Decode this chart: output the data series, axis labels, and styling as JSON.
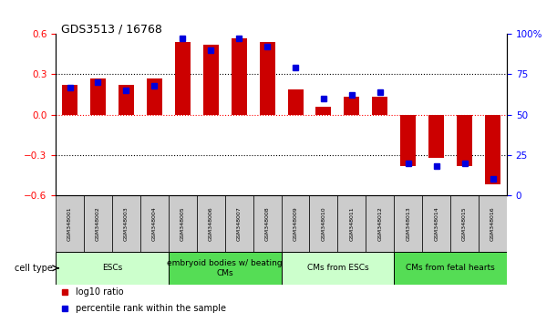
{
  "title": "GDS3513 / 16768",
  "samples": [
    "GSM348001",
    "GSM348002",
    "GSM348003",
    "GSM348004",
    "GSM348005",
    "GSM348006",
    "GSM348007",
    "GSM348008",
    "GSM348009",
    "GSM348010",
    "GSM348011",
    "GSM348012",
    "GSM348013",
    "GSM348014",
    "GSM348015",
    "GSM348016"
  ],
  "log10_ratio": [
    0.22,
    0.27,
    0.22,
    0.27,
    0.54,
    0.52,
    0.57,
    0.54,
    0.19,
    0.06,
    0.13,
    0.13,
    -0.38,
    -0.32,
    -0.38,
    -0.52
  ],
  "percentile_rank": [
    67,
    70,
    65,
    68,
    97,
    90,
    97,
    92,
    79,
    60,
    62,
    64,
    20,
    18,
    20,
    10
  ],
  "cell_types": [
    {
      "label": "ESCs",
      "start": 0,
      "end": 4,
      "color": "#ccffcc"
    },
    {
      "label": "embryoid bodies w/ beating\nCMs",
      "start": 4,
      "end": 8,
      "color": "#55dd55"
    },
    {
      "label": "CMs from ESCs",
      "start": 8,
      "end": 12,
      "color": "#ccffcc"
    },
    {
      "label": "CMs from fetal hearts",
      "start": 12,
      "end": 16,
      "color": "#55dd55"
    }
  ],
  "bar_color": "#cc0000",
  "dot_color": "#0000dd",
  "ylim_left": [
    -0.6,
    0.6
  ],
  "ylim_right": [
    0,
    100
  ],
  "yticks_left": [
    -0.6,
    -0.3,
    0.0,
    0.3,
    0.6
  ],
  "yticks_right": [
    0,
    25,
    50,
    75,
    100
  ],
  "hlines_dotted": [
    -0.3,
    0.3
  ],
  "hline_red": 0.0,
  "legend_ratio_label": "log10 ratio",
  "legend_pct_label": "percentile rank within the sample",
  "cell_type_label": "cell type",
  "bar_width": 0.55
}
